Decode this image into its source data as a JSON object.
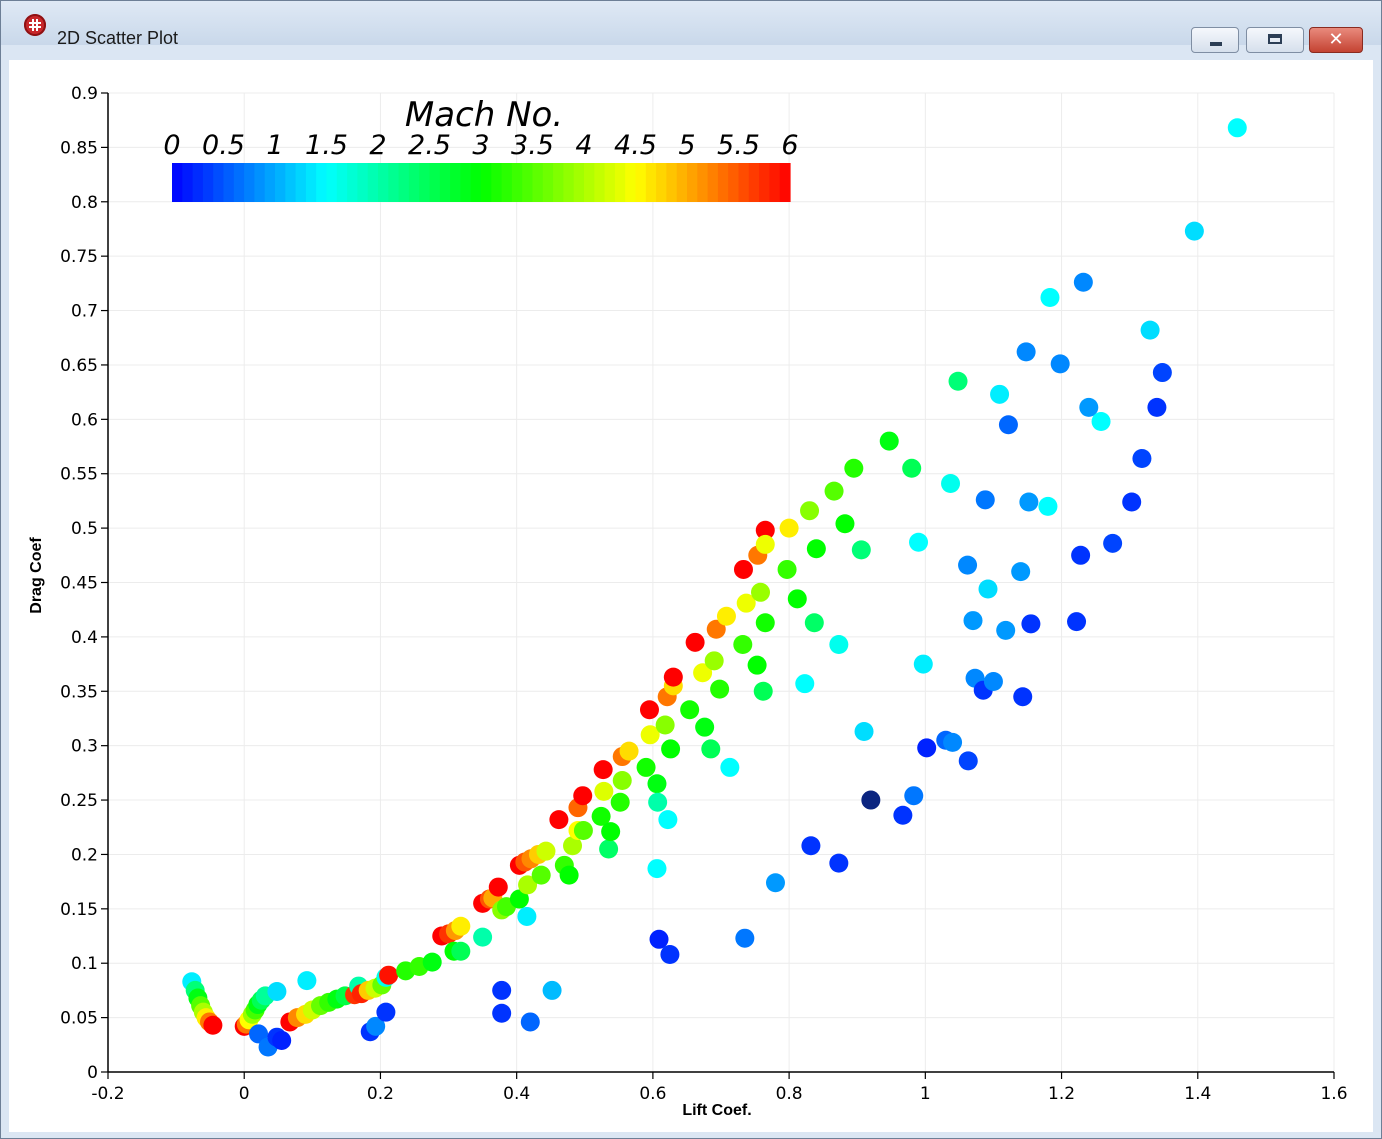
{
  "window": {
    "title": "2D Scatter Plot",
    "icon": "grid-globe-icon",
    "controls": {
      "minimize_icon": "minimize-icon",
      "maximize_icon": "maximize-icon",
      "close_icon": "close-icon",
      "close_glyph": "✕"
    }
  },
  "chart_data": {
    "type": "scatter",
    "title": "",
    "xlabel": "Lift Coef.",
    "ylabel": "Drag Coef",
    "xlim": [
      -0.2,
      1.6
    ],
    "ylim": [
      0,
      0.9
    ],
    "grid": true,
    "x_ticks": [
      "-0.2",
      "0",
      "0.2",
      "0.4",
      "0.6",
      "0.8",
      "1",
      "1.2",
      "1.4",
      "1.6"
    ],
    "y_ticks": [
      "0",
      "0.05",
      "0.1",
      "0.15",
      "0.2",
      "0.25",
      "0.3",
      "0.35",
      "0.4",
      "0.45",
      "0.5",
      "0.55",
      "0.6",
      "0.65",
      "0.7",
      "0.75",
      "0.8",
      "0.85",
      "0.9"
    ],
    "colorbar": {
      "title": "Mach No.",
      "placement": "top-left",
      "min": 0,
      "max": 6,
      "ticks": [
        "0",
        "0.5",
        "1",
        "1.5",
        "2",
        "2.5",
        "3",
        "3.5",
        "4",
        "4.5",
        "5",
        "5.5",
        "6"
      ],
      "colormap": [
        "#0000ff",
        "#00ffff",
        "#00ff00",
        "#ffff00",
        "#ff0000"
      ]
    },
    "color_variable": "Mach No.",
    "points": [
      {
        "x": -0.077,
        "y": 0.083,
        "m": 1.4
      },
      {
        "x": -0.072,
        "y": 0.075,
        "m": 2.3
      },
      {
        "x": -0.068,
        "y": 0.068,
        "m": 2.9
      },
      {
        "x": -0.064,
        "y": 0.061,
        "m": 3.5
      },
      {
        "x": -0.06,
        "y": 0.055,
        "m": 4.0
      },
      {
        "x": -0.056,
        "y": 0.05,
        "m": 4.6
      },
      {
        "x": -0.051,
        "y": 0.046,
        "m": 5.3
      },
      {
        "x": -0.046,
        "y": 0.043,
        "m": 6.0
      },
      {
        "x": 0.0,
        "y": 0.042,
        "m": 6.0
      },
      {
        "x": 0.003,
        "y": 0.044,
        "m": 5.3
      },
      {
        "x": 0.007,
        "y": 0.048,
        "m": 4.5
      },
      {
        "x": 0.012,
        "y": 0.053,
        "m": 3.9
      },
      {
        "x": 0.016,
        "y": 0.057,
        "m": 3.4
      },
      {
        "x": 0.02,
        "y": 0.062,
        "m": 2.9
      },
      {
        "x": 0.025,
        "y": 0.066,
        "m": 2.5
      },
      {
        "x": 0.031,
        "y": 0.07,
        "m": 2.1
      },
      {
        "x": 0.048,
        "y": 0.074,
        "m": 1.3
      },
      {
        "x": 0.021,
        "y": 0.035,
        "m": 0.6
      },
      {
        "x": 0.035,
        "y": 0.023,
        "m": 0.7
      },
      {
        "x": 0.048,
        "y": 0.032,
        "m": 0.3
      },
      {
        "x": 0.055,
        "y": 0.029,
        "m": 0.2
      },
      {
        "x": 0.092,
        "y": 0.084,
        "m": 1.4
      },
      {
        "x": 0.067,
        "y": 0.046,
        "m": 6.0
      },
      {
        "x": 0.078,
        "y": 0.05,
        "m": 5.2
      },
      {
        "x": 0.09,
        "y": 0.053,
        "m": 4.7
      },
      {
        "x": 0.1,
        "y": 0.057,
        "m": 4.2
      },
      {
        "x": 0.112,
        "y": 0.061,
        "m": 3.6
      },
      {
        "x": 0.124,
        "y": 0.064,
        "m": 3.3
      },
      {
        "x": 0.136,
        "y": 0.067,
        "m": 2.9
      },
      {
        "x": 0.148,
        "y": 0.07,
        "m": 2.6
      },
      {
        "x": 0.162,
        "y": 0.071,
        "m": 5.7
      },
      {
        "x": 0.168,
        "y": 0.079,
        "m": 2.0
      },
      {
        "x": 0.172,
        "y": 0.072,
        "m": 5.8
      },
      {
        "x": 0.182,
        "y": 0.075,
        "m": 4.8
      },
      {
        "x": 0.192,
        "y": 0.077,
        "m": 4.2
      },
      {
        "x": 0.202,
        "y": 0.08,
        "m": 3.6
      },
      {
        "x": 0.208,
        "y": 0.087,
        "m": 1.6
      },
      {
        "x": 0.212,
        "y": 0.089,
        "m": 5.9
      },
      {
        "x": 0.185,
        "y": 0.037,
        "m": 0.3
      },
      {
        "x": 0.193,
        "y": 0.042,
        "m": 0.8
      },
      {
        "x": 0.208,
        "y": 0.055,
        "m": 0.3
      },
      {
        "x": 0.237,
        "y": 0.093,
        "m": 3.2
      },
      {
        "x": 0.257,
        "y": 0.097,
        "m": 3.3
      },
      {
        "x": 0.276,
        "y": 0.101,
        "m": 2.9
      },
      {
        "x": 0.29,
        "y": 0.125,
        "m": 6.0
      },
      {
        "x": 0.3,
        "y": 0.127,
        "m": 5.7
      },
      {
        "x": 0.31,
        "y": 0.13,
        "m": 5.1
      },
      {
        "x": 0.318,
        "y": 0.134,
        "m": 4.6
      },
      {
        "x": 0.308,
        "y": 0.111,
        "m": 3.0
      },
      {
        "x": 0.318,
        "y": 0.111,
        "m": 2.5
      },
      {
        "x": 0.35,
        "y": 0.124,
        "m": 2.0
      },
      {
        "x": 0.35,
        "y": 0.155,
        "m": 6.0
      },
      {
        "x": 0.36,
        "y": 0.159,
        "m": 5.5
      },
      {
        "x": 0.365,
        "y": 0.16,
        "m": 5.0
      },
      {
        "x": 0.373,
        "y": 0.17,
        "m": 6.0
      },
      {
        "x": 0.378,
        "y": 0.149,
        "m": 3.8
      },
      {
        "x": 0.385,
        "y": 0.152,
        "m": 3.4
      },
      {
        "x": 0.378,
        "y": 0.075,
        "m": 0.3
      },
      {
        "x": 0.378,
        "y": 0.054,
        "m": 0.3
      },
      {
        "x": 0.404,
        "y": 0.159,
        "m": 3.0
      },
      {
        "x": 0.404,
        "y": 0.19,
        "m": 6.0
      },
      {
        "x": 0.412,
        "y": 0.193,
        "m": 5.5
      },
      {
        "x": 0.416,
        "y": 0.172,
        "m": 4.0
      },
      {
        "x": 0.421,
        "y": 0.196,
        "m": 5.2
      },
      {
        "x": 0.432,
        "y": 0.2,
        "m": 4.8
      },
      {
        "x": 0.436,
        "y": 0.181,
        "m": 3.5
      },
      {
        "x": 0.443,
        "y": 0.203,
        "m": 4.2
      },
      {
        "x": 0.415,
        "y": 0.143,
        "m": 1.4
      },
      {
        "x": 0.42,
        "y": 0.046,
        "m": 0.6
      },
      {
        "x": 0.452,
        "y": 0.075,
        "m": 1.1
      },
      {
        "x": 0.462,
        "y": 0.232,
        "m": 6.0
      },
      {
        "x": 0.47,
        "y": 0.19,
        "m": 3.3
      },
      {
        "x": 0.477,
        "y": 0.181,
        "m": 3.0
      },
      {
        "x": 0.482,
        "y": 0.208,
        "m": 4.0
      },
      {
        "x": 0.49,
        "y": 0.222,
        "m": 4.5
      },
      {
        "x": 0.49,
        "y": 0.243,
        "m": 5.4
      },
      {
        "x": 0.497,
        "y": 0.254,
        "m": 6.0
      },
      {
        "x": 0.498,
        "y": 0.222,
        "m": 3.5
      },
      {
        "x": 0.524,
        "y": 0.235,
        "m": 3.1
      },
      {
        "x": 0.528,
        "y": 0.258,
        "m": 4.3
      },
      {
        "x": 0.527,
        "y": 0.278,
        "m": 6.0
      },
      {
        "x": 0.535,
        "y": 0.205,
        "m": 2.4
      },
      {
        "x": 0.538,
        "y": 0.221,
        "m": 3.0
      },
      {
        "x": 0.552,
        "y": 0.248,
        "m": 3.2
      },
      {
        "x": 0.555,
        "y": 0.268,
        "m": 3.8
      },
      {
        "x": 0.555,
        "y": 0.29,
        "m": 5.3
      },
      {
        "x": 0.565,
        "y": 0.295,
        "m": 4.7
      },
      {
        "x": 0.59,
        "y": 0.28,
        "m": 3.1
      },
      {
        "x": 0.596,
        "y": 0.31,
        "m": 4.4
      },
      {
        "x": 0.595,
        "y": 0.333,
        "m": 6.0
      },
      {
        "x": 0.606,
        "y": 0.265,
        "m": 2.9
      },
      {
        "x": 0.607,
        "y": 0.248,
        "m": 2.0
      },
      {
        "x": 0.618,
        "y": 0.319,
        "m": 3.8
      },
      {
        "x": 0.621,
        "y": 0.345,
        "m": 5.3
      },
      {
        "x": 0.63,
        "y": 0.355,
        "m": 4.7
      },
      {
        "x": 0.63,
        "y": 0.363,
        "m": 6.0
      },
      {
        "x": 0.626,
        "y": 0.297,
        "m": 3.0
      },
      {
        "x": 0.622,
        "y": 0.232,
        "m": 1.5
      },
      {
        "x": 0.606,
        "y": 0.187,
        "m": 1.5
      },
      {
        "x": 0.609,
        "y": 0.122,
        "m": 0.2
      },
      {
        "x": 0.625,
        "y": 0.108,
        "m": 0.3
      },
      {
        "x": 0.654,
        "y": 0.333,
        "m": 3.1
      },
      {
        "x": 0.662,
        "y": 0.395,
        "m": 6.0
      },
      {
        "x": 0.673,
        "y": 0.367,
        "m": 4.4
      },
      {
        "x": 0.676,
        "y": 0.317,
        "m": 2.9
      },
      {
        "x": 0.685,
        "y": 0.297,
        "m": 2.5
      },
      {
        "x": 0.69,
        "y": 0.378,
        "m": 3.9
      },
      {
        "x": 0.693,
        "y": 0.407,
        "m": 5.3
      },
      {
        "x": 0.698,
        "y": 0.352,
        "m": 3.2
      },
      {
        "x": 0.708,
        "y": 0.419,
        "m": 4.6
      },
      {
        "x": 0.713,
        "y": 0.28,
        "m": 1.5
      },
      {
        "x": 0.733,
        "y": 0.462,
        "m": 6.0
      },
      {
        "x": 0.732,
        "y": 0.393,
        "m": 3.3
      },
      {
        "x": 0.737,
        "y": 0.431,
        "m": 4.4
      },
      {
        "x": 0.735,
        "y": 0.123,
        "m": 0.7
      },
      {
        "x": 0.754,
        "y": 0.475,
        "m": 5.3
      },
      {
        "x": 0.753,
        "y": 0.374,
        "m": 3.0
      },
      {
        "x": 0.758,
        "y": 0.441,
        "m": 3.9
      },
      {
        "x": 0.762,
        "y": 0.35,
        "m": 2.5
      },
      {
        "x": 0.765,
        "y": 0.498,
        "m": 6.0
      },
      {
        "x": 0.765,
        "y": 0.485,
        "m": 4.4
      },
      {
        "x": 0.765,
        "y": 0.413,
        "m": 3.1
      },
      {
        "x": 0.78,
        "y": 0.174,
        "m": 0.9
      },
      {
        "x": 0.797,
        "y": 0.462,
        "m": 3.3
      },
      {
        "x": 0.8,
        "y": 0.5,
        "m": 4.6
      },
      {
        "x": 0.812,
        "y": 0.435,
        "m": 3.0
      },
      {
        "x": 0.823,
        "y": 0.357,
        "m": 1.5
      },
      {
        "x": 0.83,
        "y": 0.516,
        "m": 3.8
      },
      {
        "x": 0.84,
        "y": 0.481,
        "m": 3.0
      },
      {
        "x": 0.837,
        "y": 0.413,
        "m": 2.4
      },
      {
        "x": 0.832,
        "y": 0.208,
        "m": 0.3
      },
      {
        "x": 0.866,
        "y": 0.534,
        "m": 3.5
      },
      {
        "x": 0.873,
        "y": 0.393,
        "m": 1.6
      },
      {
        "x": 0.873,
        "y": 0.192,
        "m": 0.3
      },
      {
        "x": 0.882,
        "y": 0.504,
        "m": 3.0
      },
      {
        "x": 0.895,
        "y": 0.555,
        "m": 3.2
      },
      {
        "x": 0.906,
        "y": 0.48,
        "m": 2.3
      },
      {
        "x": 0.91,
        "y": 0.313,
        "m": 1.3
      },
      {
        "x": 0.92,
        "y": 0.25,
        "m": 0.0
      },
      {
        "x": 0.947,
        "y": 0.58,
        "m": 2.9
      },
      {
        "x": 0.967,
        "y": 0.236,
        "m": 0.3
      },
      {
        "x": 0.98,
        "y": 0.555,
        "m": 2.5
      },
      {
        "x": 0.983,
        "y": 0.254,
        "m": 0.7
      },
      {
        "x": 0.99,
        "y": 0.487,
        "m": 1.5
      },
      {
        "x": 0.997,
        "y": 0.375,
        "m": 1.4
      },
      {
        "x": 1.002,
        "y": 0.298,
        "m": 0.2
      },
      {
        "x": 1.03,
        "y": 0.305,
        "m": 0.6
      },
      {
        "x": 1.037,
        "y": 0.541,
        "m": 1.6
      },
      {
        "x": 1.04,
        "y": 0.303,
        "m": 0.8
      },
      {
        "x": 1.048,
        "y": 0.635,
        "m": 2.3
      },
      {
        "x": 1.062,
        "y": 0.466,
        "m": 0.8
      },
      {
        "x": 1.063,
        "y": 0.286,
        "m": 0.4
      },
      {
        "x": 1.07,
        "y": 0.415,
        "m": 0.9
      },
      {
        "x": 1.073,
        "y": 0.362,
        "m": 0.8
      },
      {
        "x": 1.085,
        "y": 0.351,
        "m": 0.3
      },
      {
        "x": 1.088,
        "y": 0.526,
        "m": 0.7
      },
      {
        "x": 1.092,
        "y": 0.444,
        "m": 1.3
      },
      {
        "x": 1.1,
        "y": 0.359,
        "m": 0.8
      },
      {
        "x": 1.109,
        "y": 0.623,
        "m": 1.4
      },
      {
        "x": 1.118,
        "y": 0.406,
        "m": 0.9
      },
      {
        "x": 1.122,
        "y": 0.595,
        "m": 0.6
      },
      {
        "x": 1.14,
        "y": 0.46,
        "m": 0.9
      },
      {
        "x": 1.143,
        "y": 0.345,
        "m": 0.3
      },
      {
        "x": 1.148,
        "y": 0.662,
        "m": 0.8
      },
      {
        "x": 1.152,
        "y": 0.524,
        "m": 0.9
      },
      {
        "x": 1.155,
        "y": 0.412,
        "m": 0.3
      },
      {
        "x": 1.18,
        "y": 0.52,
        "m": 1.5
      },
      {
        "x": 1.183,
        "y": 0.712,
        "m": 1.5
      },
      {
        "x": 1.198,
        "y": 0.651,
        "m": 0.8
      },
      {
        "x": 1.222,
        "y": 0.414,
        "m": 0.3
      },
      {
        "x": 1.228,
        "y": 0.475,
        "m": 0.3
      },
      {
        "x": 1.232,
        "y": 0.726,
        "m": 0.8
      },
      {
        "x": 1.24,
        "y": 0.611,
        "m": 0.9
      },
      {
        "x": 1.258,
        "y": 0.598,
        "m": 1.5
      },
      {
        "x": 1.275,
        "y": 0.486,
        "m": 0.4
      },
      {
        "x": 1.303,
        "y": 0.524,
        "m": 0.3
      },
      {
        "x": 1.318,
        "y": 0.564,
        "m": 0.4
      },
      {
        "x": 1.33,
        "y": 0.682,
        "m": 1.3
      },
      {
        "x": 1.34,
        "y": 0.611,
        "m": 0.3
      },
      {
        "x": 1.348,
        "y": 0.643,
        "m": 0.4
      },
      {
        "x": 1.395,
        "y": 0.773,
        "m": 1.3
      },
      {
        "x": 1.458,
        "y": 0.868,
        "m": 1.5
      }
    ]
  }
}
